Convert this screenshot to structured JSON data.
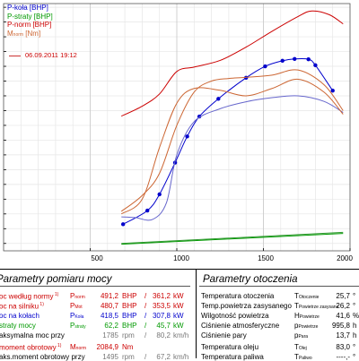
{
  "chart_data": {
    "type": "line",
    "xlim": [
      0,
      2000
    ],
    "x_ticks": [
      "500",
      "1000",
      "1500",
      "2000"
    ],
    "grid": true,
    "legend_position": "top-left",
    "legend": [
      {
        "label": "P-koła [BHP]",
        "color": "#0000cc"
      },
      {
        "label": "P-straty [BHP]",
        "color": "#009900"
      },
      {
        "label": "P-norm [BHP]",
        "color": "#cc0000"
      },
      {
        "label": "M",
        "sub": "norm",
        "suffix": " [Nm]",
        "color": "#cc6633"
      }
    ],
    "date_label": "06.09.2011 19:12",
    "series": [
      {
        "name": "P-koła [BHP]",
        "color": "#0000cc",
        "marker": true,
        "x": [
          690,
          830,
          900,
          990,
          1060,
          1130,
          1240,
          1400,
          1510,
          1610,
          1680,
          1760,
          1800,
          1900
        ],
        "y": [
          52,
          89,
          133,
          219,
          290,
          344,
          392,
          449,
          480,
          495,
          500,
          499,
          483,
          414
        ]
      },
      {
        "name": "P-koła [BHP] envelope",
        "color": "#6666cc",
        "x": [
          680,
          760,
          860,
          940,
          1000,
          1100,
          1250,
          1400,
          1550,
          1700,
          1850,
          1960
        ],
        "y": [
          72,
          70,
          65,
          110,
          240,
          330,
          365,
          384,
          395,
          400,
          385,
          355
        ]
      },
      {
        "name": "P-straty [BHP]",
        "color": "#009900",
        "x": [
          680,
          1960
        ],
        "y": [
          -2,
          27
        ]
      },
      {
        "name": "P-straty [BHP] upper",
        "color": "#339933",
        "x": [
          680,
          1960
        ],
        "y": [
          0,
          30
        ]
      },
      {
        "name": "P-norm [BHP]",
        "color": "#cc0000",
        "x": [
          680,
          800,
          900,
          1000,
          1100,
          1250,
          1400,
          1550,
          1700,
          1780,
          1880,
          1960
        ],
        "y": [
          345,
          372,
          405,
          466,
          478,
          496,
          532,
          575,
          615,
          630,
          620,
          595
        ]
      },
      {
        "name": "M-norm [Nm]",
        "color": "#cc6633",
        "x": [
          680,
          800,
          900,
          1000,
          1100,
          1200,
          1300,
          1400,
          1550,
          1700,
          1850,
          1960
        ],
        "y": [
          87,
          130,
          190,
          320,
          410,
          440,
          447,
          450,
          456,
          470,
          430,
          360
        ]
      },
      {
        "name": "M-norm [Nm] lower",
        "color": "#cc6633",
        "x": [
          680,
          800,
          900,
          1000,
          1100,
          1250,
          1400,
          1550,
          1700,
          1850,
          1960
        ],
        "y": [
          80,
          120,
          260,
          380,
          420,
          415,
          400,
          420,
          445,
          410,
          350
        ]
      }
    ]
  },
  "left_panel": {
    "title": "Parametry pomiaru mocy",
    "rows": [
      {
        "label": "oc według normy",
        "sup": "1)",
        "sym": "P",
        "sym_sub": "norm",
        "v1": "491,2",
        "u1": "BHP",
        "sep": "/",
        "v2": "361,2",
        "u2": "kW",
        "color": "red"
      },
      {
        "label": "oc na silniku",
        "sup": "1)",
        "sym": "P",
        "sym_sub": "Mot",
        "v1": "480,7",
        "u1": "BHP",
        "sep": "/",
        "v2": "353,5",
        "u2": "kW",
        "color": "red"
      },
      {
        "label": "oc na kołach",
        "sup": "",
        "sym": "P",
        "sym_sub": "Koła",
        "v1": "418,5",
        "u1": "BHP",
        "sep": "/",
        "v2": "307,8",
        "u2": "kW",
        "color": "blue"
      },
      {
        "label": "straty mocy",
        "sup": "",
        "sym": "P",
        "sym_sub": "straty",
        "v1": "62,2",
        "u1": "BHP",
        "sep": "/",
        "v2": "45,7",
        "u2": "kW",
        "color": "green"
      },
      {
        "label": "aksymalna moc przy",
        "sup": "",
        "sym": "",
        "sym_sub": "",
        "v1": "1785",
        "u1": "rpm",
        "sep": "/",
        "v2": "80,2",
        "u2": "km/h",
        "color": "black"
      },
      {
        "label": "moment obrotowy",
        "sup": "1)",
        "sym": "M",
        "sym_sub": "norm",
        "v1": "2084,9",
        "u1": "Nm",
        "sep": "",
        "v2": "",
        "u2": "",
        "color": "red"
      },
      {
        "label": "aks.moment obrotowy przy",
        "sup": "",
        "sym": "",
        "sym_sub": "",
        "v1": "1495",
        "u1": "rpm",
        "sep": "/",
        "v2": "67,2",
        "u2": "km/h",
        "color": "black"
      }
    ]
  },
  "right_panel": {
    "title": "Parametry otoczenia",
    "rows": [
      {
        "label": "Temperatura otoczenia",
        "sym": "T",
        "sym_sub": "Otoczenie",
        "value": "25,7",
        "unit": "°"
      },
      {
        "label": "Temp.powietrza zasysanego",
        "sym": "T",
        "sym_sub": "Powietrze zasysane",
        "value": "26,2",
        "unit": "°"
      },
      {
        "label": "Wilgotność powietrza",
        "sym": "H",
        "sym_sub": "Powietrze",
        "value": "41,6",
        "unit": "%"
      },
      {
        "label": "Ciśnienie atmosferyczne",
        "sym": "p",
        "sym_sub": "Powietrze",
        "value": "995,8",
        "unit": "h"
      },
      {
        "label": "Ciśnienie pary",
        "sym": "p",
        "sym_sub": "Para",
        "value": "13,7",
        "unit": "h"
      },
      {
        "label": "Temperatura oleju",
        "sym": "T",
        "sym_sub": "Olej",
        "value": "83,0",
        "unit": "°"
      },
      {
        "label": "Temperatura paliwa",
        "sym": "T",
        "sym_sub": "Paliwo",
        "value": "----,-",
        "unit": "°"
      }
    ]
  }
}
